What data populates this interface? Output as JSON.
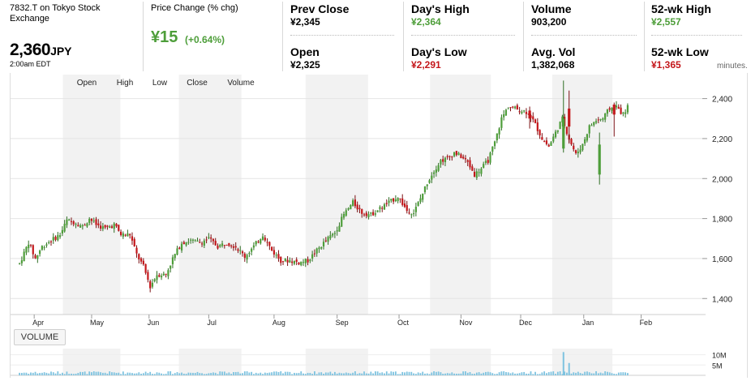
{
  "quote": {
    "symbol_line1": "7832.T on Tokyo Stock",
    "symbol_line2": "Exchange",
    "price": "2,360",
    "currency": "JPY",
    "time": "2:00am EDT",
    "change_label": "Price Change (% chg)",
    "change_value": "¥15",
    "change_pct": "(+0.64%)",
    "truncated_text": "minutes."
  },
  "stats": [
    {
      "label": "Prev Close",
      "value": "¥2,345"
    },
    {
      "label": "Day's High",
      "value": "¥2,364"
    },
    {
      "label": "Volume",
      "value": "903,200"
    },
    {
      "label": "52-wk High",
      "value": "¥2,557"
    },
    {
      "label": "Open",
      "value": "¥2,325"
    },
    {
      "label": "Day's Low",
      "value": "¥2,291"
    },
    {
      "label": "Avg. Vol",
      "value": "1,382,068"
    },
    {
      "label": "52-wk Low",
      "value": "¥1,365"
    }
  ],
  "colors": {
    "up": "#4e9e3a",
    "down": "#c4171b",
    "band": "#f2f2f2",
    "volume": "#7ec3e0"
  },
  "volume_button": "VOLUME",
  "chart_data": {
    "type": "candlestick",
    "legend_items": [
      "Open",
      "High",
      "Low",
      "Close",
      "Volume"
    ],
    "months": [
      "Apr",
      "May",
      "Jun",
      "Jul",
      "Aug",
      "Sep",
      "Oct",
      "Nov",
      "Dec",
      "Jan",
      "Feb"
    ],
    "month_positions": [
      6.5,
      32,
      57.5,
      84,
      113,
      141,
      168.5,
      196,
      222.5,
      250.5,
      276
    ],
    "price_ticks": [
      1400,
      1600,
      1800,
      2000,
      2200,
      2400
    ],
    "price_tick_labels": [
      "1,400",
      "1,600",
      "1,800",
      "2,000",
      "2,200",
      "2,400"
    ],
    "volume_ticks": [
      "10M",
      "5M"
    ],
    "volume_tick_values": [
      10,
      5
    ],
    "price_range": [
      1320,
      2520
    ],
    "volume_range": [
      0,
      13
    ],
    "x_range": [
      -4,
      301
    ],
    "shaded_months": [
      1,
      3,
      5,
      7,
      9,
      11
    ],
    "price_path": [
      [
        0,
        1575
      ],
      [
        4,
        1680
      ],
      [
        7,
        1600
      ],
      [
        10,
        1660
      ],
      [
        14,
        1690
      ],
      [
        18,
        1720
      ],
      [
        21,
        1790
      ],
      [
        25,
        1780
      ],
      [
        28,
        1760
      ],
      [
        31,
        1800
      ],
      [
        34,
        1770
      ],
      [
        38,
        1750
      ],
      [
        42,
        1770
      ],
      [
        45,
        1720
      ],
      [
        49,
        1720
      ],
      [
        52,
        1620
      ],
      [
        55,
        1560
      ],
      [
        58,
        1460
      ],
      [
        61,
        1520
      ],
      [
        65,
        1520
      ],
      [
        68,
        1600
      ],
      [
        72,
        1680
      ],
      [
        76,
        1690
      ],
      [
        80,
        1680
      ],
      [
        84,
        1700
      ],
      [
        88,
        1660
      ],
      [
        92,
        1680
      ],
      [
        96,
        1660
      ],
      [
        100,
        1610
      ],
      [
        104,
        1660
      ],
      [
        108,
        1720
      ],
      [
        112,
        1640
      ],
      [
        116,
        1590
      ],
      [
        120,
        1590
      ],
      [
        124,
        1580
      ],
      [
        128,
        1590
      ],
      [
        132,
        1640
      ],
      [
        136,
        1690
      ],
      [
        140,
        1730
      ],
      [
        144,
        1820
      ],
      [
        148,
        1880
      ],
      [
        152,
        1830
      ],
      [
        156,
        1820
      ],
      [
        160,
        1850
      ],
      [
        164,
        1880
      ],
      [
        168,
        1910
      ],
      [
        172,
        1840
      ],
      [
        175,
        1830
      ],
      [
        178,
        1900
      ],
      [
        181,
        1980
      ],
      [
        184,
        2040
      ],
      [
        187,
        2090
      ],
      [
        190,
        2100
      ],
      [
        193,
        2130
      ],
      [
        196,
        2110
      ],
      [
        199,
        2080
      ],
      [
        202,
        2020
      ],
      [
        205,
        2050
      ],
      [
        208,
        2090
      ],
      [
        211,
        2180
      ],
      [
        214,
        2300
      ],
      [
        217,
        2360
      ],
      [
        220,
        2350
      ],
      [
        223,
        2340
      ],
      [
        226,
        2330
      ],
      [
        229,
        2270
      ],
      [
        232,
        2200
      ],
      [
        235,
        2160
      ],
      [
        238,
        2230
      ],
      [
        241,
        2300
      ],
      [
        244,
        2200
      ],
      [
        247,
        2120
      ],
      [
        250,
        2170
      ],
      [
        253,
        2260
      ],
      [
        256,
        2290
      ],
      [
        259,
        2300
      ],
      [
        262,
        2350
      ],
      [
        265,
        2360
      ],
      [
        268,
        2320
      ],
      [
        270,
        2360
      ]
    ],
    "big_candles": [
      {
        "x": 241.5,
        "open": 2150,
        "close": 2300,
        "high": 2490,
        "low": 2130
      },
      {
        "x": 244,
        "open": 2350,
        "close": 2260,
        "high": 2440,
        "low": 2180
      },
      {
        "x": 257.5,
        "open": 2020,
        "close": 2170,
        "high": 2230,
        "low": 1970
      },
      {
        "x": 226.5,
        "open": 2340,
        "close": 2300,
        "high": 2360,
        "low": 2250
      },
      {
        "x": 264,
        "open": 2370,
        "close": 2320,
        "high": 2380,
        "low": 2210
      }
    ],
    "volume_spikes": [
      {
        "x": 241.5,
        "value": 11.3
      },
      {
        "x": 244,
        "value": 6.0
      }
    ]
  }
}
